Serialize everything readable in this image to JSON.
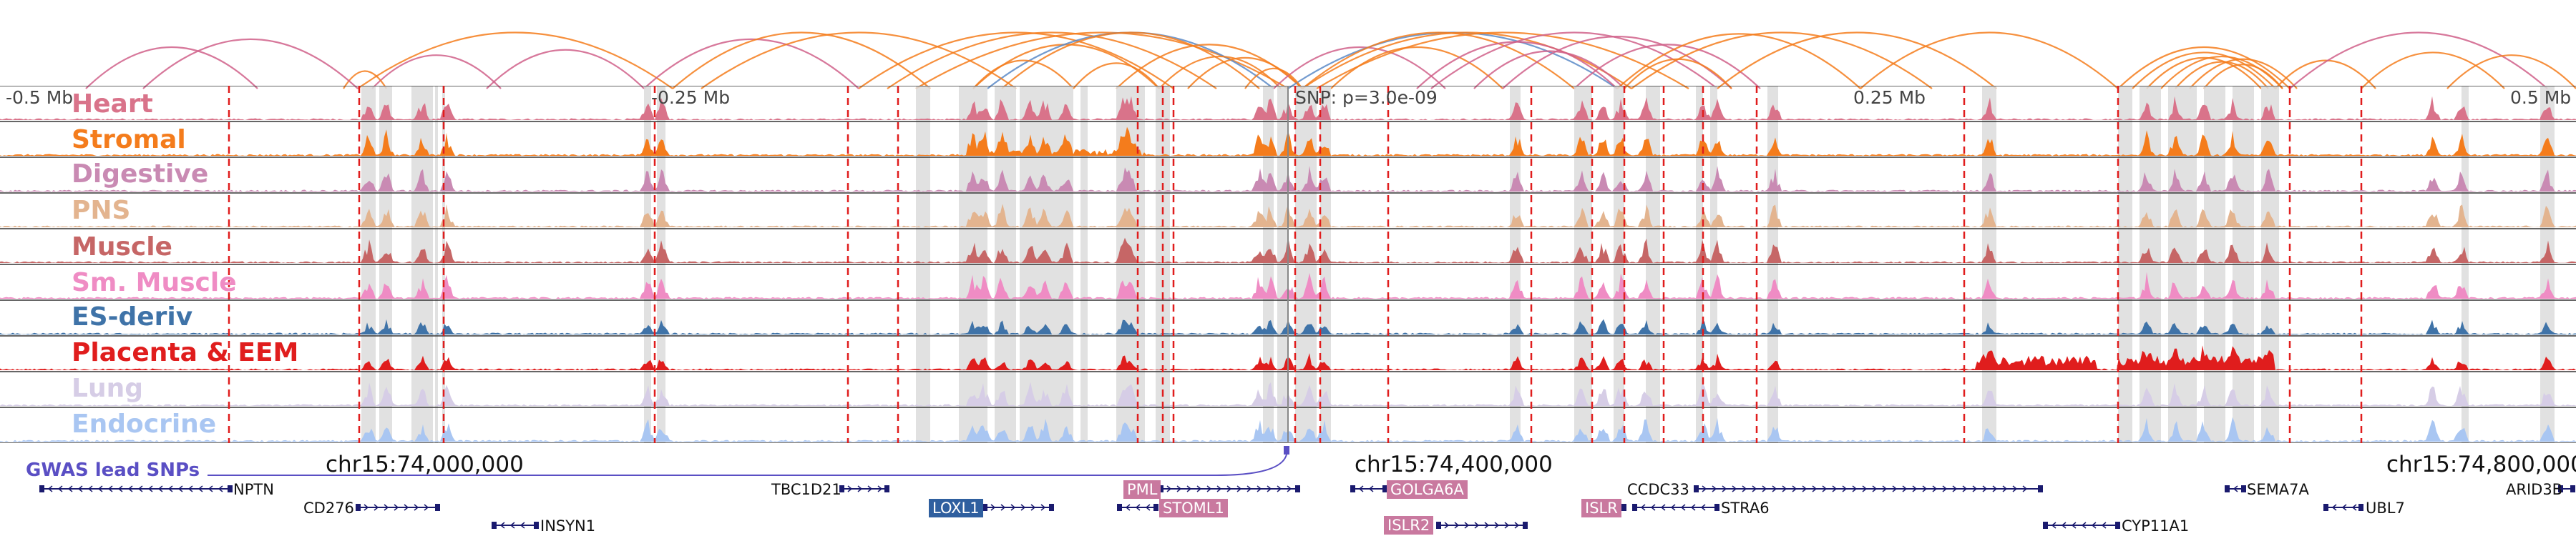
{
  "axis": {
    "left": "-0.5 Mb",
    "mid_left": "-0.25 Mb",
    "snp": "SNP: p=3.0e-09",
    "mid_right": "0.25 Mb",
    "right": "0.5 Mb"
  },
  "tracks": [
    {
      "name": "Heart",
      "color": "#d9738a"
    },
    {
      "name": "Stromal",
      "color": "#f47c1c"
    },
    {
      "name": "Digestive",
      "color": "#c98ab3"
    },
    {
      "name": "PNS",
      "color": "#e3b48f"
    },
    {
      "name": "Muscle",
      "color": "#c66666"
    },
    {
      "name": "Sm. Muscle",
      "color": "#ef8cc4"
    },
    {
      "name": "ES-deriv",
      "color": "#3f73a8"
    },
    {
      "name": "Placenta & EEM",
      "color": "#e01d1d"
    },
    {
      "name": "Lung",
      "color": "#d6cde6"
    },
    {
      "name": "Endocrine",
      "color": "#a9c6f2"
    }
  ],
  "coordinates": [
    "chr15:74,000,000",
    "chr15:74,400,000",
    "chr15:74,800,000"
  ],
  "gwas_label": "GWAS lead SNPs",
  "genes": {
    "plain": [
      "NPTN",
      "CD276",
      "INSYN1",
      "TBC1D21",
      "CCDC33",
      "STRA6",
      "SEMA7A",
      "UBL7",
      "ARID3B",
      "CYP11A1"
    ],
    "highlighted": [
      "LOXL1",
      "PML",
      "STOML1",
      "GOLGA6A",
      "ISLR2",
      "ISLR"
    ]
  },
  "colors": {
    "loop_orange": "#f47c1c",
    "loop_pink": "#d0608a",
    "loop_blue": "#5b8ac7",
    "boundary_red": "#e01d1d",
    "highlight_gray": "#dcdcdc",
    "gene_highlight_pink": "#c9799f",
    "gene_highlight_blue": "#2f5f9f",
    "gene_navy": "#1a1a6e",
    "gwas_purple": "#5a4fc4"
  }
}
